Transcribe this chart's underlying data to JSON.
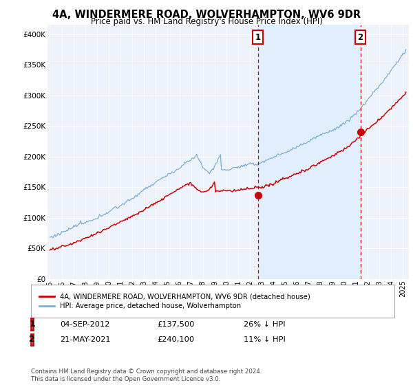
{
  "title": "4A, WINDERMERE ROAD, WOLVERHAMPTON, WV6 9DR",
  "subtitle": "Price paid vs. HM Land Registry's House Price Index (HPI)",
  "ylabel_ticks": [
    "£0",
    "£50K",
    "£100K",
    "£150K",
    "£200K",
    "£250K",
    "£300K",
    "£350K",
    "£400K"
  ],
  "ylabel_values": [
    0,
    50000,
    100000,
    150000,
    200000,
    250000,
    300000,
    350000,
    400000
  ],
  "ylim": [
    0,
    415000
  ],
  "xlim_start": 1994.8,
  "xlim_end": 2025.5,
  "hpi_color": "#7bafd4",
  "hpi_fill_color": "#ddeeff",
  "price_color": "#cc0000",
  "dashed_color": "#cc0000",
  "marker1_x": 2012.67,
  "marker1_y": 137500,
  "marker2_x": 2021.38,
  "marker2_y": 240100,
  "annotation1_label": "1",
  "annotation2_label": "2",
  "legend_label1": "4A, WINDERMERE ROAD, WOLVERHAMPTON, WV6 9DR (detached house)",
  "legend_label2": "HPI: Average price, detached house, Wolverhampton",
  "table_row1_num": "1",
  "table_row1_date": "04-SEP-2012",
  "table_row1_price": "£137,500",
  "table_row1_hpi": "26% ↓ HPI",
  "table_row2_num": "2",
  "table_row2_date": "21-MAY-2021",
  "table_row2_price": "£240,100",
  "table_row2_hpi": "11% ↓ HPI",
  "footer": "Contains HM Land Registry data © Crown copyright and database right 2024.\nThis data is licensed under the Open Government Licence v3.0.",
  "background_color": "#ffffff",
  "plot_bg_color": "#eef2fb",
  "grid_color": "#ffffff"
}
